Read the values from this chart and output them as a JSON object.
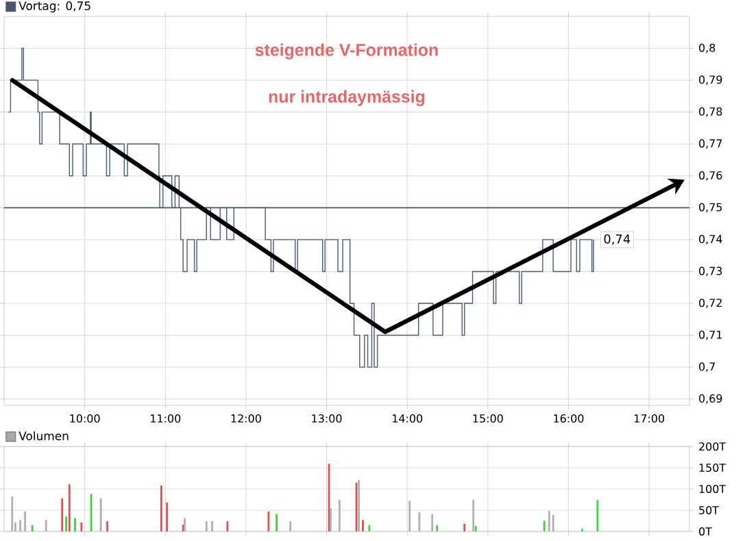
{
  "chart_data": [
    {
      "type": "step",
      "annotations": [
        "steigende V-Formation",
        "nur intradaymässig",
        {
          "text": "0,74",
          "x": 16.31,
          "y": 0.74
        }
      ],
      "x": [
        9.05,
        9.08,
        9.22,
        9.24,
        9.42,
        9.44,
        9.47,
        9.69,
        9.81,
        9.85,
        9.98,
        10.02,
        10.07,
        10.08,
        10.27,
        10.31,
        10.49,
        10.53,
        10.92,
        10.93,
        10.97,
        11.08,
        11.12,
        11.17,
        11.19,
        11.22,
        11.27,
        11.36,
        11.39,
        11.51,
        11.56,
        11.68,
        11.76,
        11.85,
        12.24,
        12.31,
        12.34,
        12.61,
        12.64,
        12.95,
        12.98,
        13.14,
        13.2,
        13.29,
        13.34,
        13.41,
        13.47,
        13.51,
        13.56,
        13.59,
        13.63,
        13.71,
        14.14,
        14.32,
        14.44,
        14.68,
        14.71,
        14.81,
        15.07,
        15.1,
        15.39,
        15.42,
        15.68,
        15.81,
        16.03,
        16.1,
        16.14,
        16.29,
        16.31
      ],
      "series": [
        {
          "color": "#4a5a78",
          "values": [
            0.78,
            0.79,
            0.8,
            0.79,
            0.78,
            0.77,
            0.78,
            0.77,
            0.76,
            0.77,
            0.76,
            0.77,
            0.78,
            0.77,
            0.76,
            0.77,
            0.76,
            0.77,
            0.76,
            0.75,
            0.76,
            0.75,
            0.76,
            0.75,
            0.74,
            0.73,
            0.74,
            0.73,
            0.74,
            0.75,
            0.74,
            0.75,
            0.74,
            0.75,
            0.74,
            0.73,
            0.74,
            0.73,
            0.74,
            0.73,
            0.74,
            0.73,
            0.74,
            0.72,
            0.71,
            0.7,
            0.71,
            0.7,
            0.72,
            0.7,
            0.71,
            0.71,
            0.72,
            0.71,
            0.72,
            0.71,
            0.72,
            0.73,
            0.72,
            0.73,
            0.72,
            0.73,
            0.74,
            0.73,
            0.74,
            0.73,
            0.74,
            0.73,
            0.74
          ]
        }
      ],
      "xlim": [
        9,
        17.5
      ],
      "ylim": [
        0.688,
        0.81
      ],
      "xticks": [
        {
          "value": 10,
          "label": "10:00"
        },
        {
          "value": 11,
          "label": "11:00"
        },
        {
          "value": 12,
          "label": "12:00"
        },
        {
          "value": 13,
          "label": "13:00"
        },
        {
          "value": 14,
          "label": "14:00"
        },
        {
          "value": 15,
          "label": "15:00"
        },
        {
          "value": 16,
          "label": "16:00"
        },
        {
          "value": 17,
          "label": "17:00"
        }
      ],
      "yticks": [
        {
          "value": 0.69,
          "label": "0,69"
        },
        {
          "value": 0.7,
          "label": "0,7"
        },
        {
          "value": 0.71,
          "label": "0,71"
        },
        {
          "value": 0.72,
          "label": "0,72"
        },
        {
          "value": 0.73,
          "label": "0,73"
        },
        {
          "value": 0.74,
          "label": "0,74"
        },
        {
          "value": 0.75,
          "label": "0,75"
        },
        {
          "value": 0.76,
          "label": "0,76"
        },
        {
          "value": 0.77,
          "label": "0,77"
        },
        {
          "value": 0.78,
          "label": "0,78"
        },
        {
          "value": 0.79,
          "label": "0,79"
        },
        {
          "value": 0.8,
          "label": "0,8"
        }
      ],
      "ref_lines": [
        {
          "axis": "y",
          "value": 0.75,
          "label": "Vortag: 0,75",
          "color": "#4a5670"
        }
      ],
      "grid": true,
      "legend": "top left"
    },
    {
      "type": "bar",
      "x": [
        9.1,
        9.14,
        9.2,
        9.26,
        9.35,
        9.52,
        9.72,
        9.77,
        9.81,
        9.88,
        9.96,
        10.08,
        10.2,
        10.28,
        10.95,
        11.02,
        11.22,
        11.24,
        11.51,
        11.58,
        11.77,
        12.28,
        12.38,
        12.55,
        13.03,
        13.05,
        13.16,
        13.37,
        13.4,
        13.45,
        13.53,
        14.03,
        14.15,
        14.31,
        14.37,
        14.71,
        14.82,
        14.85,
        15.7,
        15.76,
        15.81,
        16.17,
        16.36
      ],
      "series": [
        {
          "name": "Volumen",
          "color": "#a8a8a8",
          "colors": [
            "#b0b0b0",
            "#b0b0b0",
            "#b0b0b0",
            "#b0b0b0",
            "#40d040",
            "#b0b0b0",
            "#e05050",
            "#40d040",
            "#e05050",
            "#40d040",
            "#e05050",
            "#40d040",
            "#b0b0b0",
            "#e05050",
            "#e05050",
            "#e05050",
            "#e05050",
            "#b0b0b0",
            "#b0b0b0",
            "#b0b0b0",
            "#e05050",
            "#e05050",
            "#40d040",
            "#b0b0b0",
            "#e05050",
            "#b0b0b0",
            "#b0b0b0",
            "#e05050",
            "#b0b0b0",
            "#e05050",
            "#40d040",
            "#b0b0b0",
            "#b0b0b0",
            "#b0b0b0",
            "#40d040",
            "#e05050",
            "#b0b0b0",
            "#40d040",
            "#40d040",
            "#b0b0b0",
            "#b0b0b0",
            "#40d040",
            "#40d040"
          ],
          "values": [
            82,
            21,
            27,
            47,
            15,
            27,
            78,
            35,
            111,
            31,
            21,
            88,
            78,
            24,
            108,
            68,
            16,
            31,
            24,
            24,
            24,
            47,
            41,
            24,
            159,
            54,
            74,
            115,
            121,
            27,
            15,
            72,
            45,
            41,
            15,
            18,
            74,
            13,
            25,
            48,
            39,
            6,
            74
          ]
        }
      ],
      "xlim": [
        9,
        17.5
      ],
      "ylim": [
        0,
        200
      ],
      "xticks": [
        {
          "value": 10,
          "label": null
        },
        {
          "value": 11,
          "label": null
        },
        {
          "value": 12,
          "label": null
        },
        {
          "value": 13,
          "label": null
        },
        {
          "value": 14,
          "label": null
        },
        {
          "value": 15,
          "label": null
        },
        {
          "value": 16,
          "label": null
        },
        {
          "value": 17,
          "label": null
        }
      ],
      "yticks": [
        {
          "value": 0,
          "label": "0T"
        },
        {
          "value": 50,
          "label": "50T"
        },
        {
          "value": 100,
          "label": "100T"
        },
        {
          "value": 150,
          "label": "150T"
        },
        {
          "value": 200,
          "label": "200T"
        }
      ],
      "tick_labels": "y",
      "grid": true,
      "legend": "top left"
    }
  ]
}
